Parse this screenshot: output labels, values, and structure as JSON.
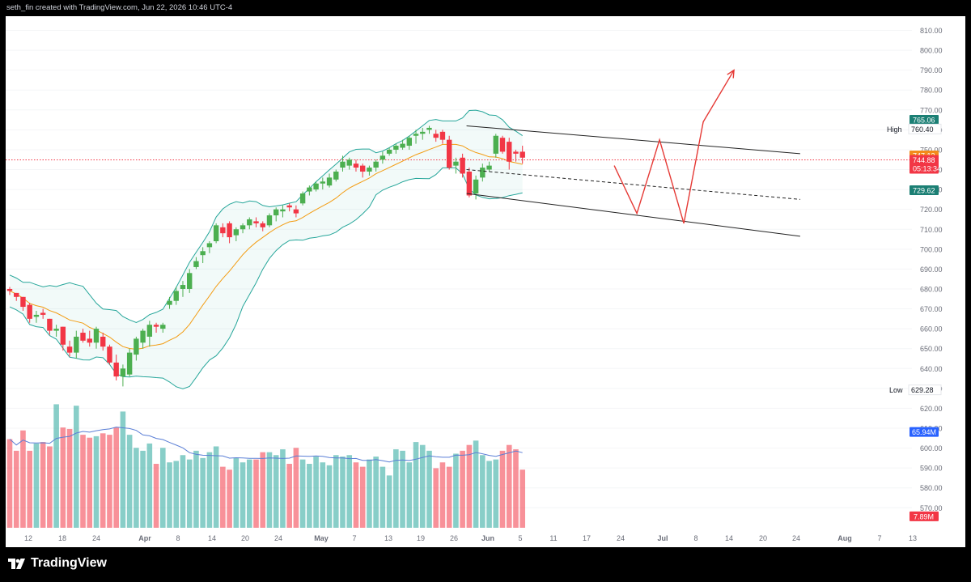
{
  "header": {
    "attribution": "seth_fin created with TradingView.com, Jun 22, 2026 10:46 UTC-4"
  },
  "footer": {
    "brand": "TradingView"
  },
  "colors": {
    "up": "#26a69a",
    "up_candle": "#4caf50",
    "down": "#f23645",
    "ma": "#f39c12",
    "band": "#26a69a",
    "volume_ma": "#5b7fd6",
    "drawing": "#e53935",
    "channel": "#222222"
  },
  "chart_data": {
    "type": "candlestick",
    "price_axis": {
      "ticks": [
        810,
        800,
        790,
        780,
        770,
        760,
        750,
        740,
        730,
        720,
        710,
        700,
        690,
        680,
        670,
        660,
        650,
        640,
        630,
        620,
        610,
        600,
        590,
        580,
        570
      ],
      "tick_labels": [
        "810.00",
        "800.00",
        "790.00",
        "780.00",
        "770.00",
        "760.00",
        "750.00",
        "740.00",
        "730.00",
        "720.00",
        "710.00",
        "700.00",
        "690.00",
        "680.00",
        "670.00",
        "660.00",
        "650.00",
        "640.00",
        "630.00",
        "620.00",
        "610.00",
        "600.00",
        "590.00",
        "580.00",
        "570.00"
      ]
    },
    "time_axis": {
      "labels": [
        {
          "text": "12",
          "bold": false
        },
        {
          "text": "18",
          "bold": false
        },
        {
          "text": "24",
          "bold": false
        },
        {
          "text": "Apr",
          "bold": true
        },
        {
          "text": "8",
          "bold": false
        },
        {
          "text": "14",
          "bold": false
        },
        {
          "text": "20",
          "bold": false
        },
        {
          "text": "24",
          "bold": false
        },
        {
          "text": "May",
          "bold": true
        },
        {
          "text": "7",
          "bold": false
        },
        {
          "text": "13",
          "bold": false
        },
        {
          "text": "19",
          "bold": false
        },
        {
          "text": "26",
          "bold": false
        },
        {
          "text": "Jun",
          "bold": true
        },
        {
          "text": "5",
          "bold": false
        },
        {
          "text": "11",
          "bold": false
        },
        {
          "text": "17",
          "bold": false
        },
        {
          "text": "24",
          "bold": false
        },
        {
          "text": "Jul",
          "bold": true
        },
        {
          "text": "8",
          "bold": false
        },
        {
          "text": "14",
          "bold": false
        },
        {
          "text": "20",
          "bold": false
        },
        {
          "text": "24",
          "bold": false
        },
        {
          "text": "Aug",
          "bold": true
        },
        {
          "text": "7",
          "bold": false
        },
        {
          "text": "13",
          "bold": false
        }
      ]
    },
    "candles_ohlc": [
      [
        680,
        681,
        677,
        679
      ],
      [
        678,
        678,
        674,
        676
      ],
      [
        676,
        676,
        669,
        671
      ],
      [
        672,
        673,
        663,
        665
      ],
      [
        666,
        669,
        663,
        667
      ],
      [
        668,
        670,
        665,
        667
      ],
      [
        665,
        665,
        657,
        659
      ],
      [
        659,
        662,
        656,
        660
      ],
      [
        661,
        661,
        649,
        652
      ],
      [
        651,
        654,
        646,
        648
      ],
      [
        648,
        659,
        645,
        656
      ],
      [
        658,
        660,
        653,
        654
      ],
      [
        655,
        659,
        651,
        653
      ],
      [
        653,
        661,
        650,
        660
      ],
      [
        656,
        658,
        649,
        651
      ],
      [
        651,
        652,
        642,
        643
      ],
      [
        643,
        647,
        634,
        636
      ],
      [
        636,
        642,
        631,
        640
      ],
      [
        637,
        650,
        636,
        648
      ],
      [
        647,
        656,
        644,
        655
      ],
      [
        653,
        660,
        650,
        659
      ],
      [
        656,
        664,
        651,
        662
      ],
      [
        662,
        663,
        658,
        661
      ],
      [
        660,
        663,
        658,
        662
      ],
      [
        672,
        676,
        670,
        674
      ],
      [
        674,
        681,
        672,
        679
      ],
      [
        680,
        684,
        676,
        682
      ],
      [
        680,
        690,
        678,
        688
      ],
      [
        691,
        696,
        690,
        694
      ],
      [
        697,
        701,
        693,
        699
      ],
      [
        701,
        704,
        698,
        703
      ],
      [
        704,
        713,
        703,
        712
      ],
      [
        711,
        713,
        706,
        708
      ],
      [
        713,
        714,
        703,
        706
      ],
      [
        707,
        711,
        704,
        710
      ],
      [
        710,
        713,
        708,
        712
      ],
      [
        712,
        716,
        710,
        715
      ],
      [
        714,
        716,
        711,
        713
      ],
      [
        713,
        714,
        709,
        711
      ],
      [
        712,
        718,
        711,
        717
      ],
      [
        717,
        721,
        714,
        720
      ],
      [
        719,
        722,
        716,
        720
      ],
      [
        722,
        723,
        719,
        721
      ],
      [
        720,
        722,
        716,
        718
      ],
      [
        723,
        729,
        722,
        728
      ],
      [
        729,
        732,
        727,
        731
      ],
      [
        730,
        734,
        729,
        733
      ],
      [
        733,
        736,
        730,
        734
      ],
      [
        732,
        738,
        731,
        736
      ],
      [
        735,
        740,
        734,
        739
      ],
      [
        741,
        747,
        739,
        744
      ],
      [
        742,
        746,
        740,
        745
      ],
      [
        743,
        745,
        739,
        741
      ],
      [
        742,
        743,
        736,
        739
      ],
      [
        739,
        742,
        737,
        741
      ],
      [
        741,
        745,
        739,
        744
      ],
      [
        745,
        749,
        743,
        747
      ],
      [
        748,
        751,
        747,
        750
      ],
      [
        750,
        753,
        748,
        752
      ],
      [
        751,
        755,
        750,
        753
      ],
      [
        752,
        757,
        750,
        756
      ],
      [
        757,
        760,
        753,
        758
      ],
      [
        758,
        761,
        755,
        759
      ],
      [
        760,
        762,
        758,
        761
      ],
      [
        758,
        760,
        754,
        756
      ],
      [
        759,
        760,
        753,
        755
      ],
      [
        755,
        757,
        740,
        741
      ],
      [
        742,
        746,
        738,
        744
      ],
      [
        746,
        748,
        736,
        738
      ],
      [
        739,
        741,
        726,
        727
      ],
      [
        728,
        737,
        725,
        735
      ],
      [
        736,
        743,
        734,
        741
      ],
      [
        740,
        744,
        739,
        742
      ],
      [
        748,
        758,
        746,
        757
      ],
      [
        756,
        757,
        748,
        749
      ],
      [
        754,
        756,
        740,
        744
      ],
      [
        749,
        750,
        744,
        748
      ],
      [
        749,
        752,
        743,
        746
      ]
    ],
    "volume_million": [
      61,
      53,
      67,
      53,
      58,
      59,
      56,
      85,
      69,
      68,
      84,
      64,
      62,
      63,
      65,
      64,
      69,
      80,
      64,
      55,
      53,
      58,
      44,
      55,
      45,
      46,
      50,
      47,
      53,
      48,
      52,
      56,
      42,
      40,
      48,
      45,
      47,
      47,
      52,
      52,
      50,
      54,
      44,
      55,
      47,
      44,
      49,
      45,
      43,
      50,
      49,
      50,
      45,
      42,
      47,
      49,
      42,
      36,
      54,
      53,
      45,
      59,
      57,
      53,
      41,
      45,
      42,
      51,
      53,
      57,
      60,
      50,
      46,
      47,
      53,
      57,
      54,
      40
    ],
    "last_price": "744.88",
    "countdown": "05:13:34",
    "ma_price": "747.13",
    "lower_band_price": "729.62",
    "upper_band_price": "765.06",
    "high": {
      "label": "High",
      "value": "760.40"
    },
    "low": {
      "label": "Low",
      "value": "629.28"
    },
    "volume_ma_value": "65.94M",
    "volume_last_value": "7.89M",
    "projection_path": [
      [
        752,
        742
      ],
      [
        780,
        718
      ],
      [
        808,
        755
      ],
      [
        838,
        713
      ],
      [
        862,
        764
      ],
      [
        900,
        790
      ]
    ]
  }
}
